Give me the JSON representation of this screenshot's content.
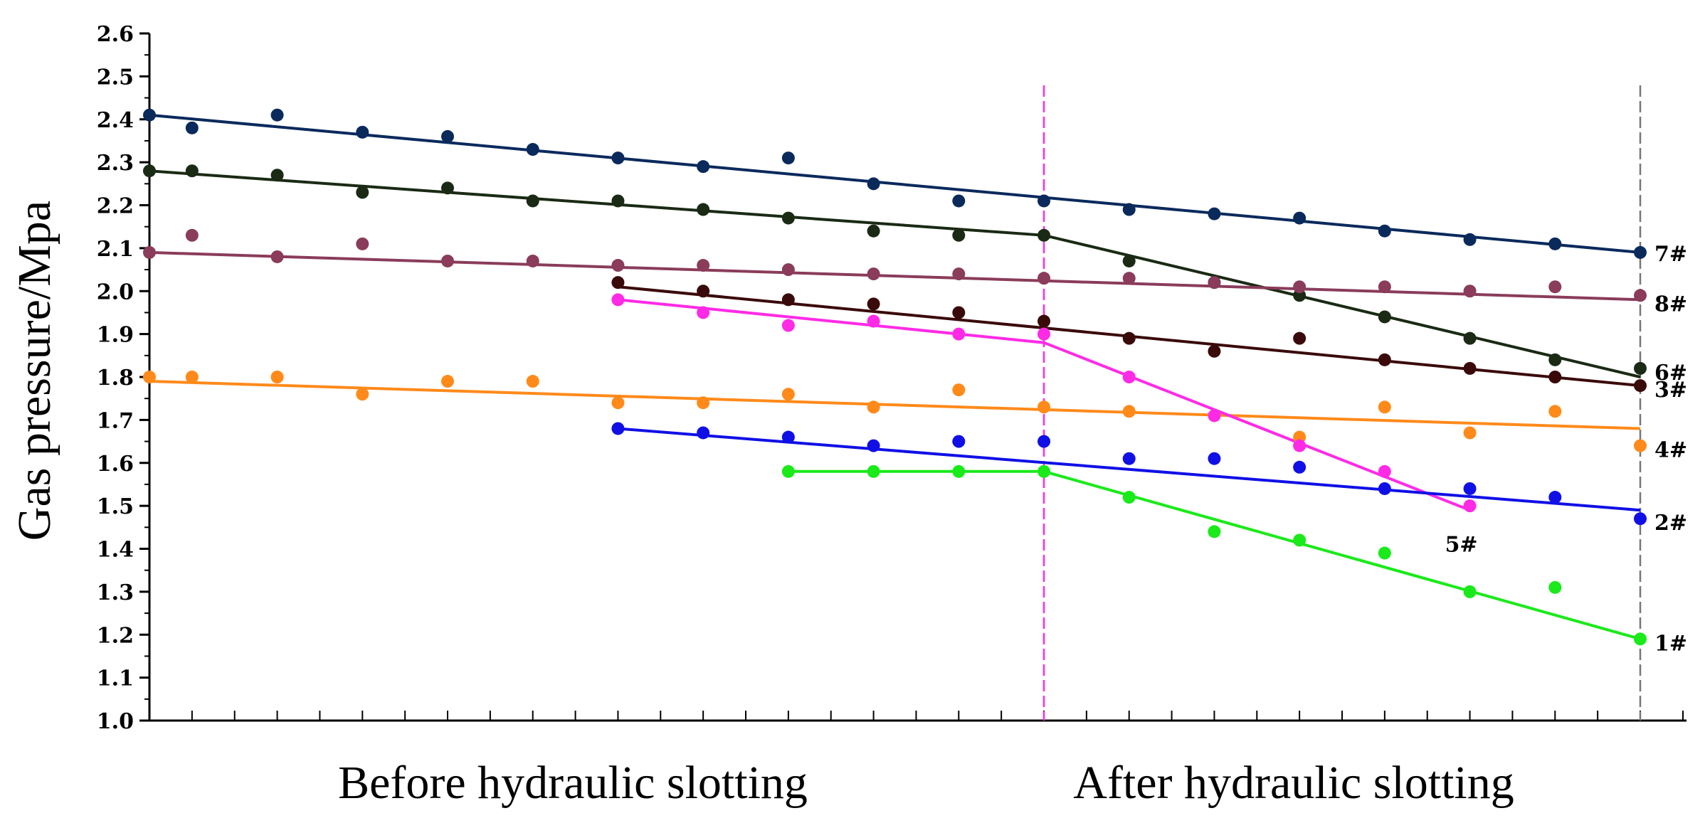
{
  "chart_data": {
    "type": "line",
    "title": "",
    "ylabel": "Gas pressure/Mpa",
    "xlabel": "",
    "ylim": [
      1.0,
      2.6
    ],
    "xlim": [
      0,
      35
    ],
    "yticks": [
      "1.0",
      "1.1",
      "1.2",
      "1.3",
      "1.4",
      "1.5",
      "1.6",
      "1.7",
      "1.8",
      "1.9",
      "2.0",
      "2.1",
      "2.2",
      "2.3",
      "2.4",
      "2.5",
      "2.6"
    ],
    "xminor_ticks": 35,
    "section_labels": {
      "before": "Before hydraulic slotting",
      "after": "After hydraulic slotting"
    },
    "divider_x": 21,
    "end_x": 35,
    "series": [
      {
        "name": "7#",
        "color": "#0a2a5c",
        "x": [
          0,
          1,
          3,
          5,
          7,
          9,
          11,
          13,
          15,
          17,
          19,
          21,
          23,
          25,
          27,
          29,
          31,
          33,
          35
        ],
        "y": [
          2.41,
          2.38,
          2.41,
          2.37,
          2.36,
          2.33,
          2.31,
          2.29,
          2.31,
          2.25,
          2.21,
          2.21,
          2.19,
          2.18,
          2.17,
          2.14,
          2.12,
          2.11,
          2.09
        ],
        "fit": [
          [
            0,
            2.41
          ],
          [
            35,
            2.09
          ]
        ]
      },
      {
        "name": "6#",
        "color": "#1a2a14",
        "x": [
          0,
          1,
          3,
          5,
          7,
          9,
          11,
          13,
          15,
          17,
          19,
          21,
          23,
          25,
          27,
          29,
          31,
          33,
          35
        ],
        "y": [
          2.28,
          2.28,
          2.27,
          2.23,
          2.24,
          2.21,
          2.21,
          2.19,
          2.17,
          2.14,
          2.13,
          2.13,
          2.07,
          2.02,
          1.99,
          1.94,
          1.89,
          1.84,
          1.82
        ],
        "fit": [
          [
            0,
            2.28
          ],
          [
            21,
            2.13
          ],
          [
            35,
            1.8
          ]
        ]
      },
      {
        "name": "8#",
        "color": "#8a3c5a",
        "x": [
          0,
          1,
          3,
          5,
          7,
          9,
          11,
          13,
          15,
          17,
          19,
          21,
          23,
          25,
          27,
          29,
          31,
          33,
          35
        ],
        "y": [
          2.09,
          2.13,
          2.08,
          2.11,
          2.07,
          2.07,
          2.06,
          2.06,
          2.05,
          2.04,
          2.04,
          2.03,
          2.03,
          2.02,
          2.01,
          2.01,
          2.0,
          2.01,
          1.99
        ],
        "fit": [
          [
            0,
            2.09
          ],
          [
            35,
            1.98
          ]
        ]
      },
      {
        "name": "3#",
        "color": "#3a0a0a",
        "x": [
          11,
          13,
          15,
          17,
          19,
          21,
          23,
          25,
          27,
          29,
          31,
          33,
          35
        ],
        "y": [
          2.02,
          2.0,
          1.98,
          1.97,
          1.95,
          1.93,
          1.89,
          1.86,
          1.89,
          1.84,
          1.82,
          1.8,
          1.78
        ],
        "fit": [
          [
            11,
            2.01
          ],
          [
            35,
            1.78
          ]
        ]
      },
      {
        "name": "4#",
        "color": "#ff8a1a",
        "x": [
          0,
          1,
          3,
          5,
          7,
          9,
          11,
          13,
          15,
          17,
          19,
          21,
          23,
          25,
          27,
          29,
          31,
          33,
          35
        ],
        "y": [
          1.8,
          1.8,
          1.8,
          1.76,
          1.79,
          1.79,
          1.74,
          1.74,
          1.76,
          1.73,
          1.77,
          1.73,
          1.72,
          1.71,
          1.66,
          1.73,
          1.67,
          1.72,
          1.64
        ],
        "fit": [
          [
            0,
            1.79
          ],
          [
            35,
            1.68
          ]
        ]
      },
      {
        "name": "5#",
        "color": "#ff2ae6",
        "x": [
          11,
          13,
          15,
          17,
          19,
          21,
          23,
          25,
          27,
          29,
          31
        ],
        "y": [
          1.98,
          1.95,
          1.92,
          1.93,
          1.9,
          1.9,
          1.8,
          1.71,
          1.64,
          1.58,
          1.5
        ],
        "fit": [
          [
            11,
            1.98
          ],
          [
            21,
            1.88
          ],
          [
            31,
            1.49
          ]
        ]
      },
      {
        "name": "2#",
        "color": "#1010e6",
        "x": [
          11,
          13,
          15,
          17,
          19,
          21,
          23,
          25,
          27,
          29,
          31,
          33,
          35
        ],
        "y": [
          1.68,
          1.67,
          1.66,
          1.64,
          1.65,
          1.65,
          1.61,
          1.61,
          1.59,
          1.54,
          1.54,
          1.52,
          1.47
        ],
        "fit": [
          [
            11,
            1.68
          ],
          [
            35,
            1.49
          ]
        ]
      },
      {
        "name": "1#",
        "color": "#1aea1a",
        "x": [
          15,
          17,
          19,
          21,
          23,
          25,
          27,
          29,
          31,
          33,
          35
        ],
        "y": [
          1.58,
          1.58,
          1.58,
          1.58,
          1.52,
          1.44,
          1.42,
          1.39,
          1.3,
          1.31,
          1.19
        ],
        "fit": [
          [
            15,
            1.58
          ],
          [
            21,
            1.58
          ],
          [
            35,
            1.19
          ]
        ]
      }
    ]
  }
}
